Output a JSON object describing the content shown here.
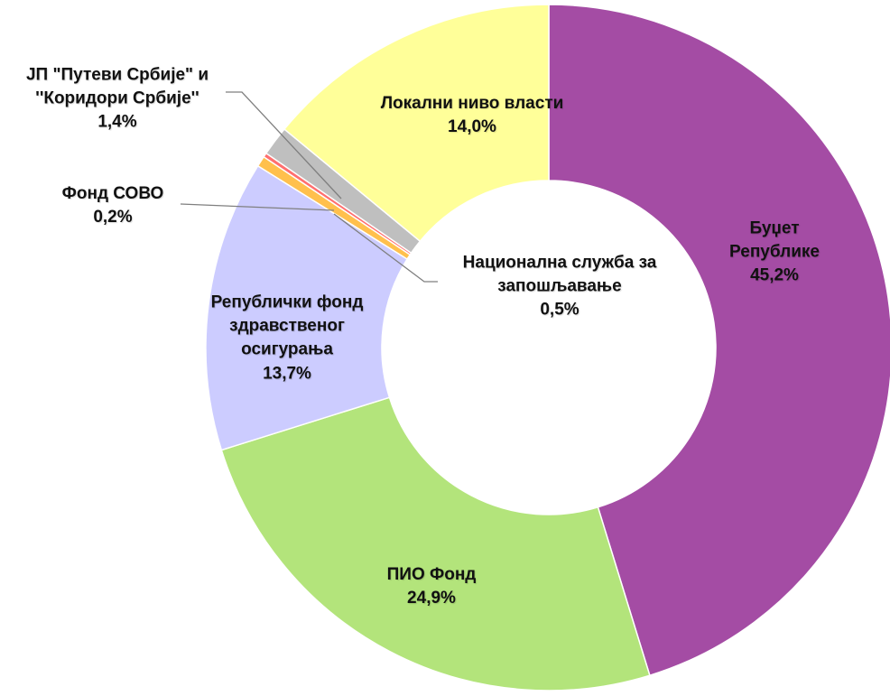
{
  "chart_data": {
    "type": "donut",
    "categories": [
      "Буџет Републике",
      "ПИО Фонд",
      "Републички фонд\nздравственог\nосигурања",
      "Национална служба за\nзапошљавање",
      "Фонд СОВО",
      "ЈП \"Путеви Србије\" и\n''Коридори Србије''",
      "Локални ниво власти"
    ],
    "values": [
      45.2,
      24.9,
      13.7,
      0.5,
      0.2,
      1.4,
      14.0
    ],
    "value_labels": [
      "45,2%",
      "24,9%",
      "13,7%",
      "0,5%",
      "0,2%",
      "1,4%",
      "14,0%"
    ],
    "colors": [
      "#a44ca4",
      "#b3e47b",
      "#ccccff",
      "#ffc04d",
      "#ff6f6f",
      "#bfbfbf",
      "#ffff99"
    ]
  }
}
